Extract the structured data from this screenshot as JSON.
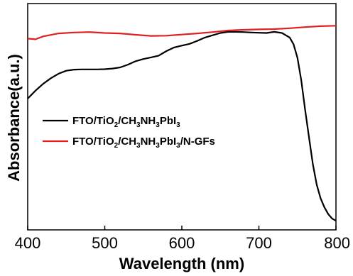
{
  "chart_data": {
    "type": "line",
    "title": "",
    "xlabel": "Wavelength (nm)",
    "ylabel": "Absorbance(a.u.)",
    "xlim": [
      400,
      800
    ],
    "ylim": [
      0,
      1
    ],
    "x_ticks": [
      400,
      500,
      600,
      700,
      800
    ],
    "y_ticks_shown": false,
    "grid": false,
    "legend_position": "middle-left",
    "series": [
      {
        "name": "FTO/TiO2/CH3NH3PbI3",
        "name_parts": [
          {
            "t": "FTO/TiO"
          },
          {
            "t": "2",
            "sub": true
          },
          {
            "t": "/CH"
          },
          {
            "t": "3",
            "sub": true
          },
          {
            "t": "NH"
          },
          {
            "t": "3",
            "sub": true
          },
          {
            "t": "PbI"
          },
          {
            "t": "3",
            "sub": true
          }
        ],
        "color": "#000000",
        "x": [
          400,
          410,
          420,
          430,
          440,
          450,
          460,
          470,
          480,
          490,
          500,
          510,
          520,
          530,
          540,
          550,
          560,
          570,
          580,
          590,
          600,
          610,
          620,
          630,
          640,
          650,
          660,
          670,
          680,
          690,
          700,
          710,
          720,
          730,
          740,
          745,
          750,
          755,
          760,
          765,
          770,
          775,
          780,
          785,
          790,
          795,
          800
        ],
        "values": [
          0.58,
          0.615,
          0.645,
          0.67,
          0.69,
          0.703,
          0.708,
          0.709,
          0.709,
          0.709,
          0.71,
          0.713,
          0.718,
          0.73,
          0.745,
          0.755,
          0.762,
          0.77,
          0.79,
          0.806,
          0.814,
          0.822,
          0.835,
          0.85,
          0.86,
          0.87,
          0.875,
          0.875,
          0.874,
          0.872,
          0.871,
          0.87,
          0.875,
          0.87,
          0.85,
          0.82,
          0.76,
          0.66,
          0.53,
          0.41,
          0.29,
          0.2,
          0.14,
          0.1,
          0.07,
          0.05,
          0.04
        ]
      },
      {
        "name": "FTO/TiO2/CH3NH3PbI3/N-GFs",
        "name_parts": [
          {
            "t": "FTO/TiO"
          },
          {
            "t": "2",
            "sub": true
          },
          {
            "t": "/CH"
          },
          {
            "t": "3",
            "sub": true
          },
          {
            "t": "NH"
          },
          {
            "t": "3",
            "sub": true
          },
          {
            "t": "PbI"
          },
          {
            "t": "3",
            "sub": true
          },
          {
            "t": "/N-GFs"
          }
        ],
        "color": "#e02020",
        "x": [
          400,
          410,
          420,
          440,
          460,
          480,
          500,
          520,
          540,
          560,
          580,
          600,
          620,
          640,
          660,
          680,
          700,
          720,
          740,
          760,
          780,
          800
        ],
        "values": [
          0.845,
          0.842,
          0.855,
          0.868,
          0.872,
          0.874,
          0.87,
          0.868,
          0.862,
          0.857,
          0.858,
          0.863,
          0.868,
          0.874,
          0.881,
          0.884,
          0.886,
          0.887,
          0.891,
          0.896,
          0.9,
          0.902
        ]
      }
    ]
  }
}
